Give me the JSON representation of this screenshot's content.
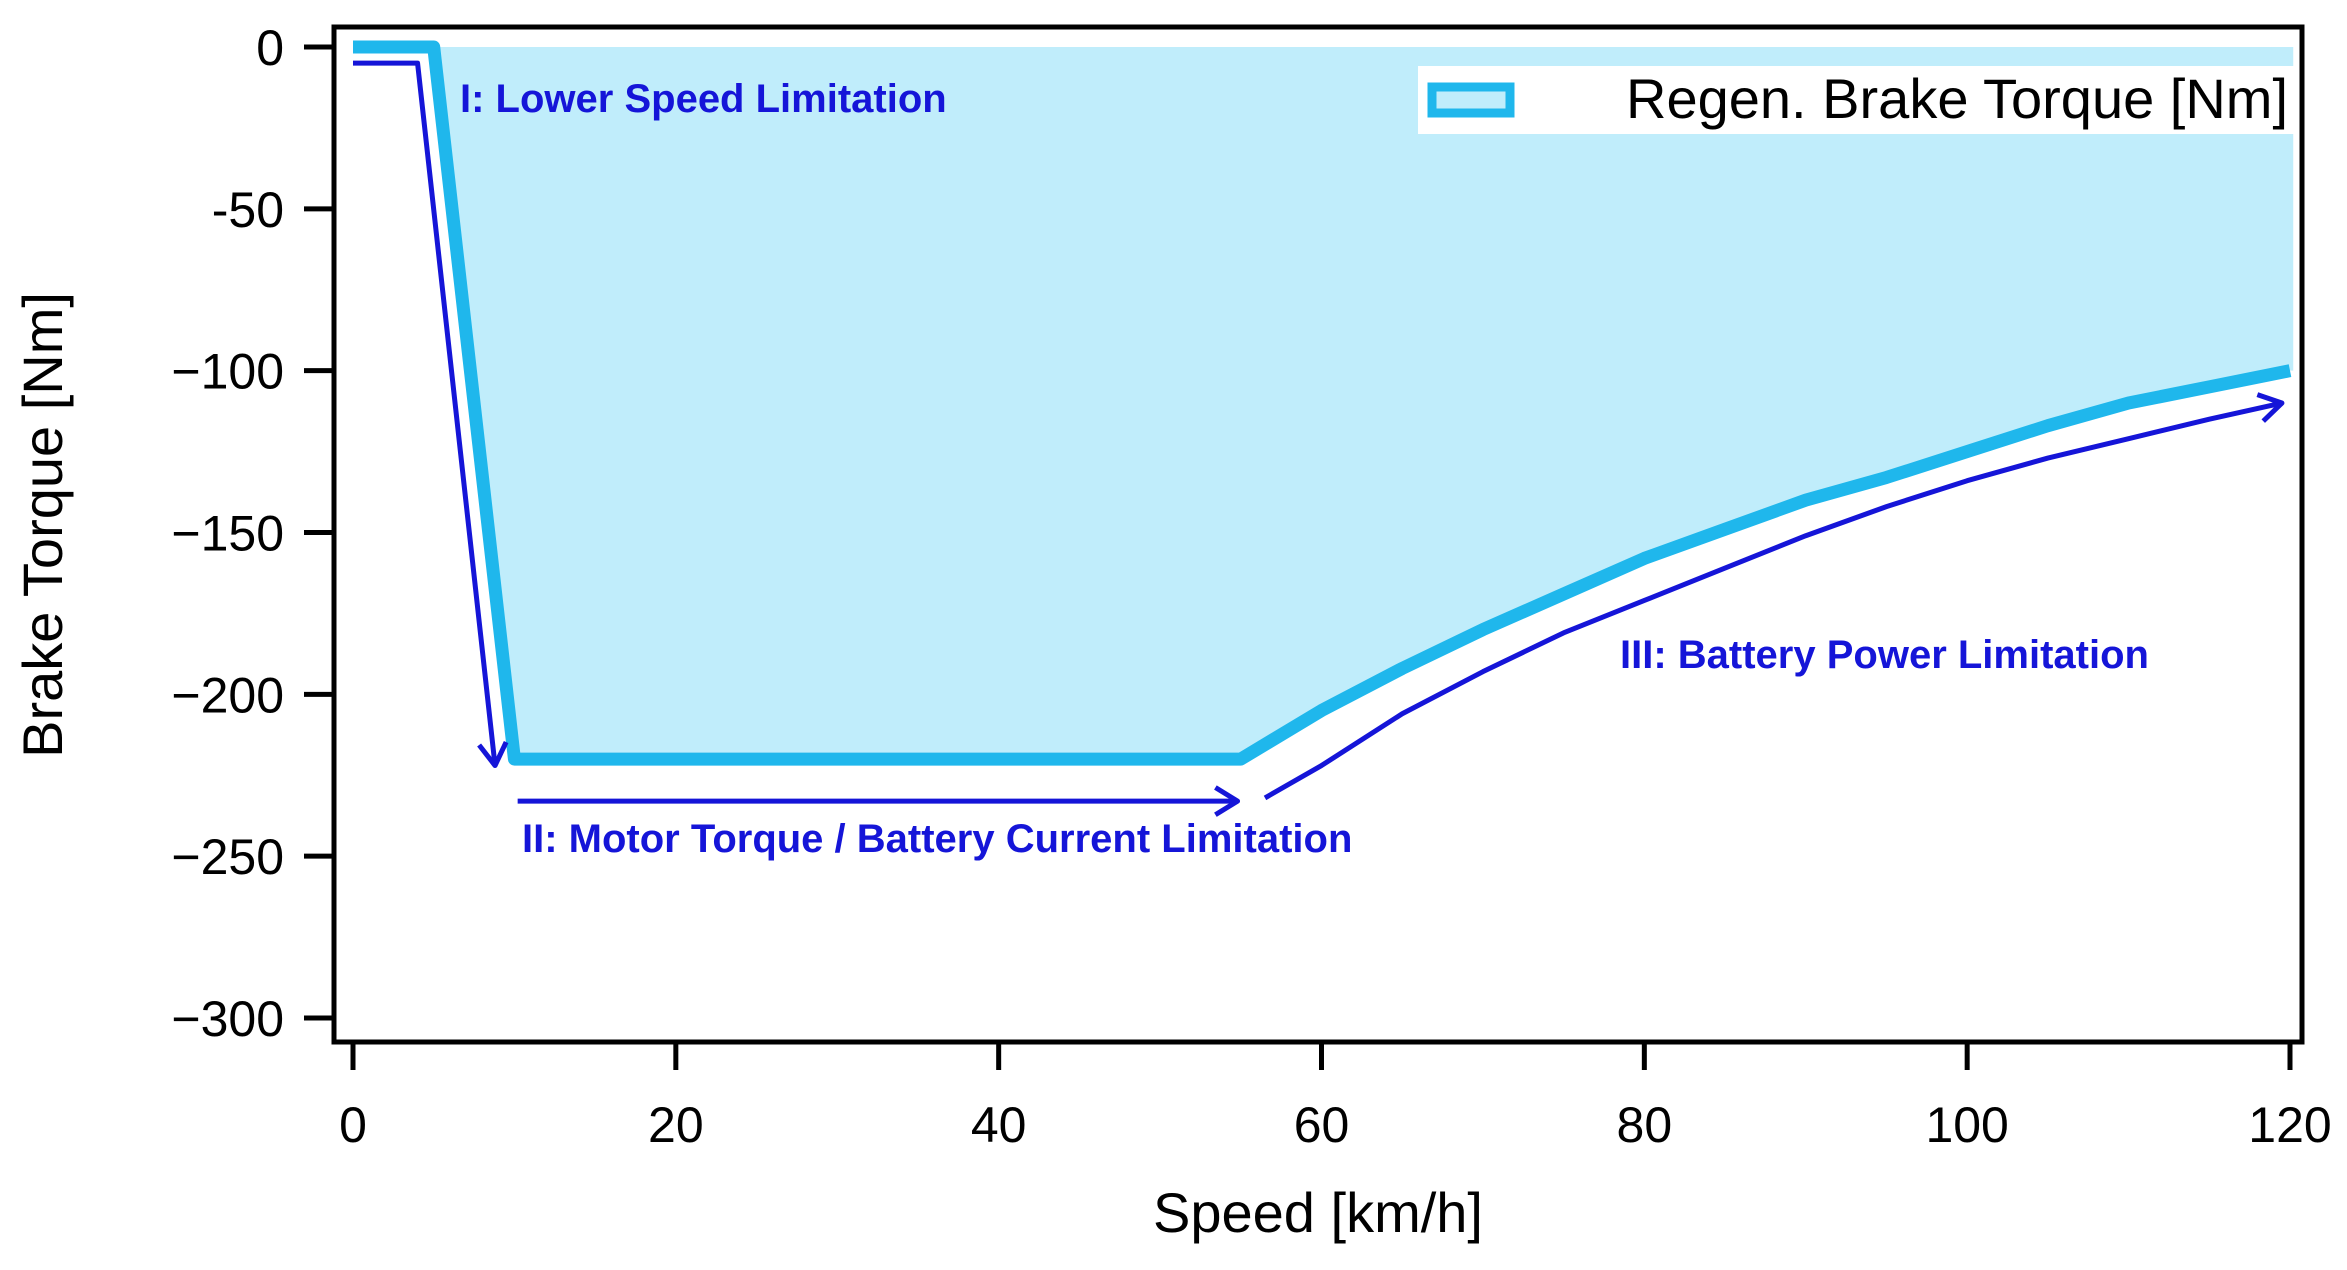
{
  "chart_data": {
    "type": "area",
    "title": "",
    "xlabel": "Speed [km/h]",
    "ylabel": "Brake Torque [Nm]",
    "xlim": [
      -1,
      120.2
    ],
    "ylim": [
      -300,
      0
    ],
    "xticks": [
      0,
      20,
      40,
      60,
      80,
      100,
      120
    ],
    "yticks": [
      0,
      -50,
      -100,
      -150,
      -200,
      -250,
      -300
    ],
    "xtick_labels": [
      "0",
      "20",
      "40",
      "60",
      "80",
      "100",
      "120"
    ],
    "ytick_labels": [
      "0",
      "-50",
      "−100",
      "−150",
      "−200",
      "−250",
      "−300"
    ],
    "legend": {
      "position": "top-right",
      "entries": [
        "Regen. Brake Torque [Nm]"
      ]
    },
    "series": [
      {
        "name": "Regen. Brake Torque [Nm]",
        "x": [
          0,
          5,
          10,
          55,
          60,
          65,
          70,
          75,
          80,
          85,
          90,
          95,
          100,
          105,
          110,
          115,
          120
        ],
        "y": [
          0,
          0,
          -220,
          -220,
          -205,
          -192,
          -180,
          -169,
          -158,
          -149,
          -140,
          -133,
          -125,
          -117,
          -110,
          -105,
          -100
        ]
      }
    ],
    "annotations": [
      {
        "id": "region-1",
        "text": "I: Lower Speed Limitation"
      },
      {
        "id": "region-2",
        "text": "II: Motor Torque / Battery Current Limitation"
      },
      {
        "id": "region-3",
        "text": "III: Battery Power Limitation"
      }
    ],
    "colors": {
      "line": "#1FB7EC",
      "fill": "#C0EDFB",
      "annotation": "#1515D8",
      "axis": "#000000"
    }
  }
}
